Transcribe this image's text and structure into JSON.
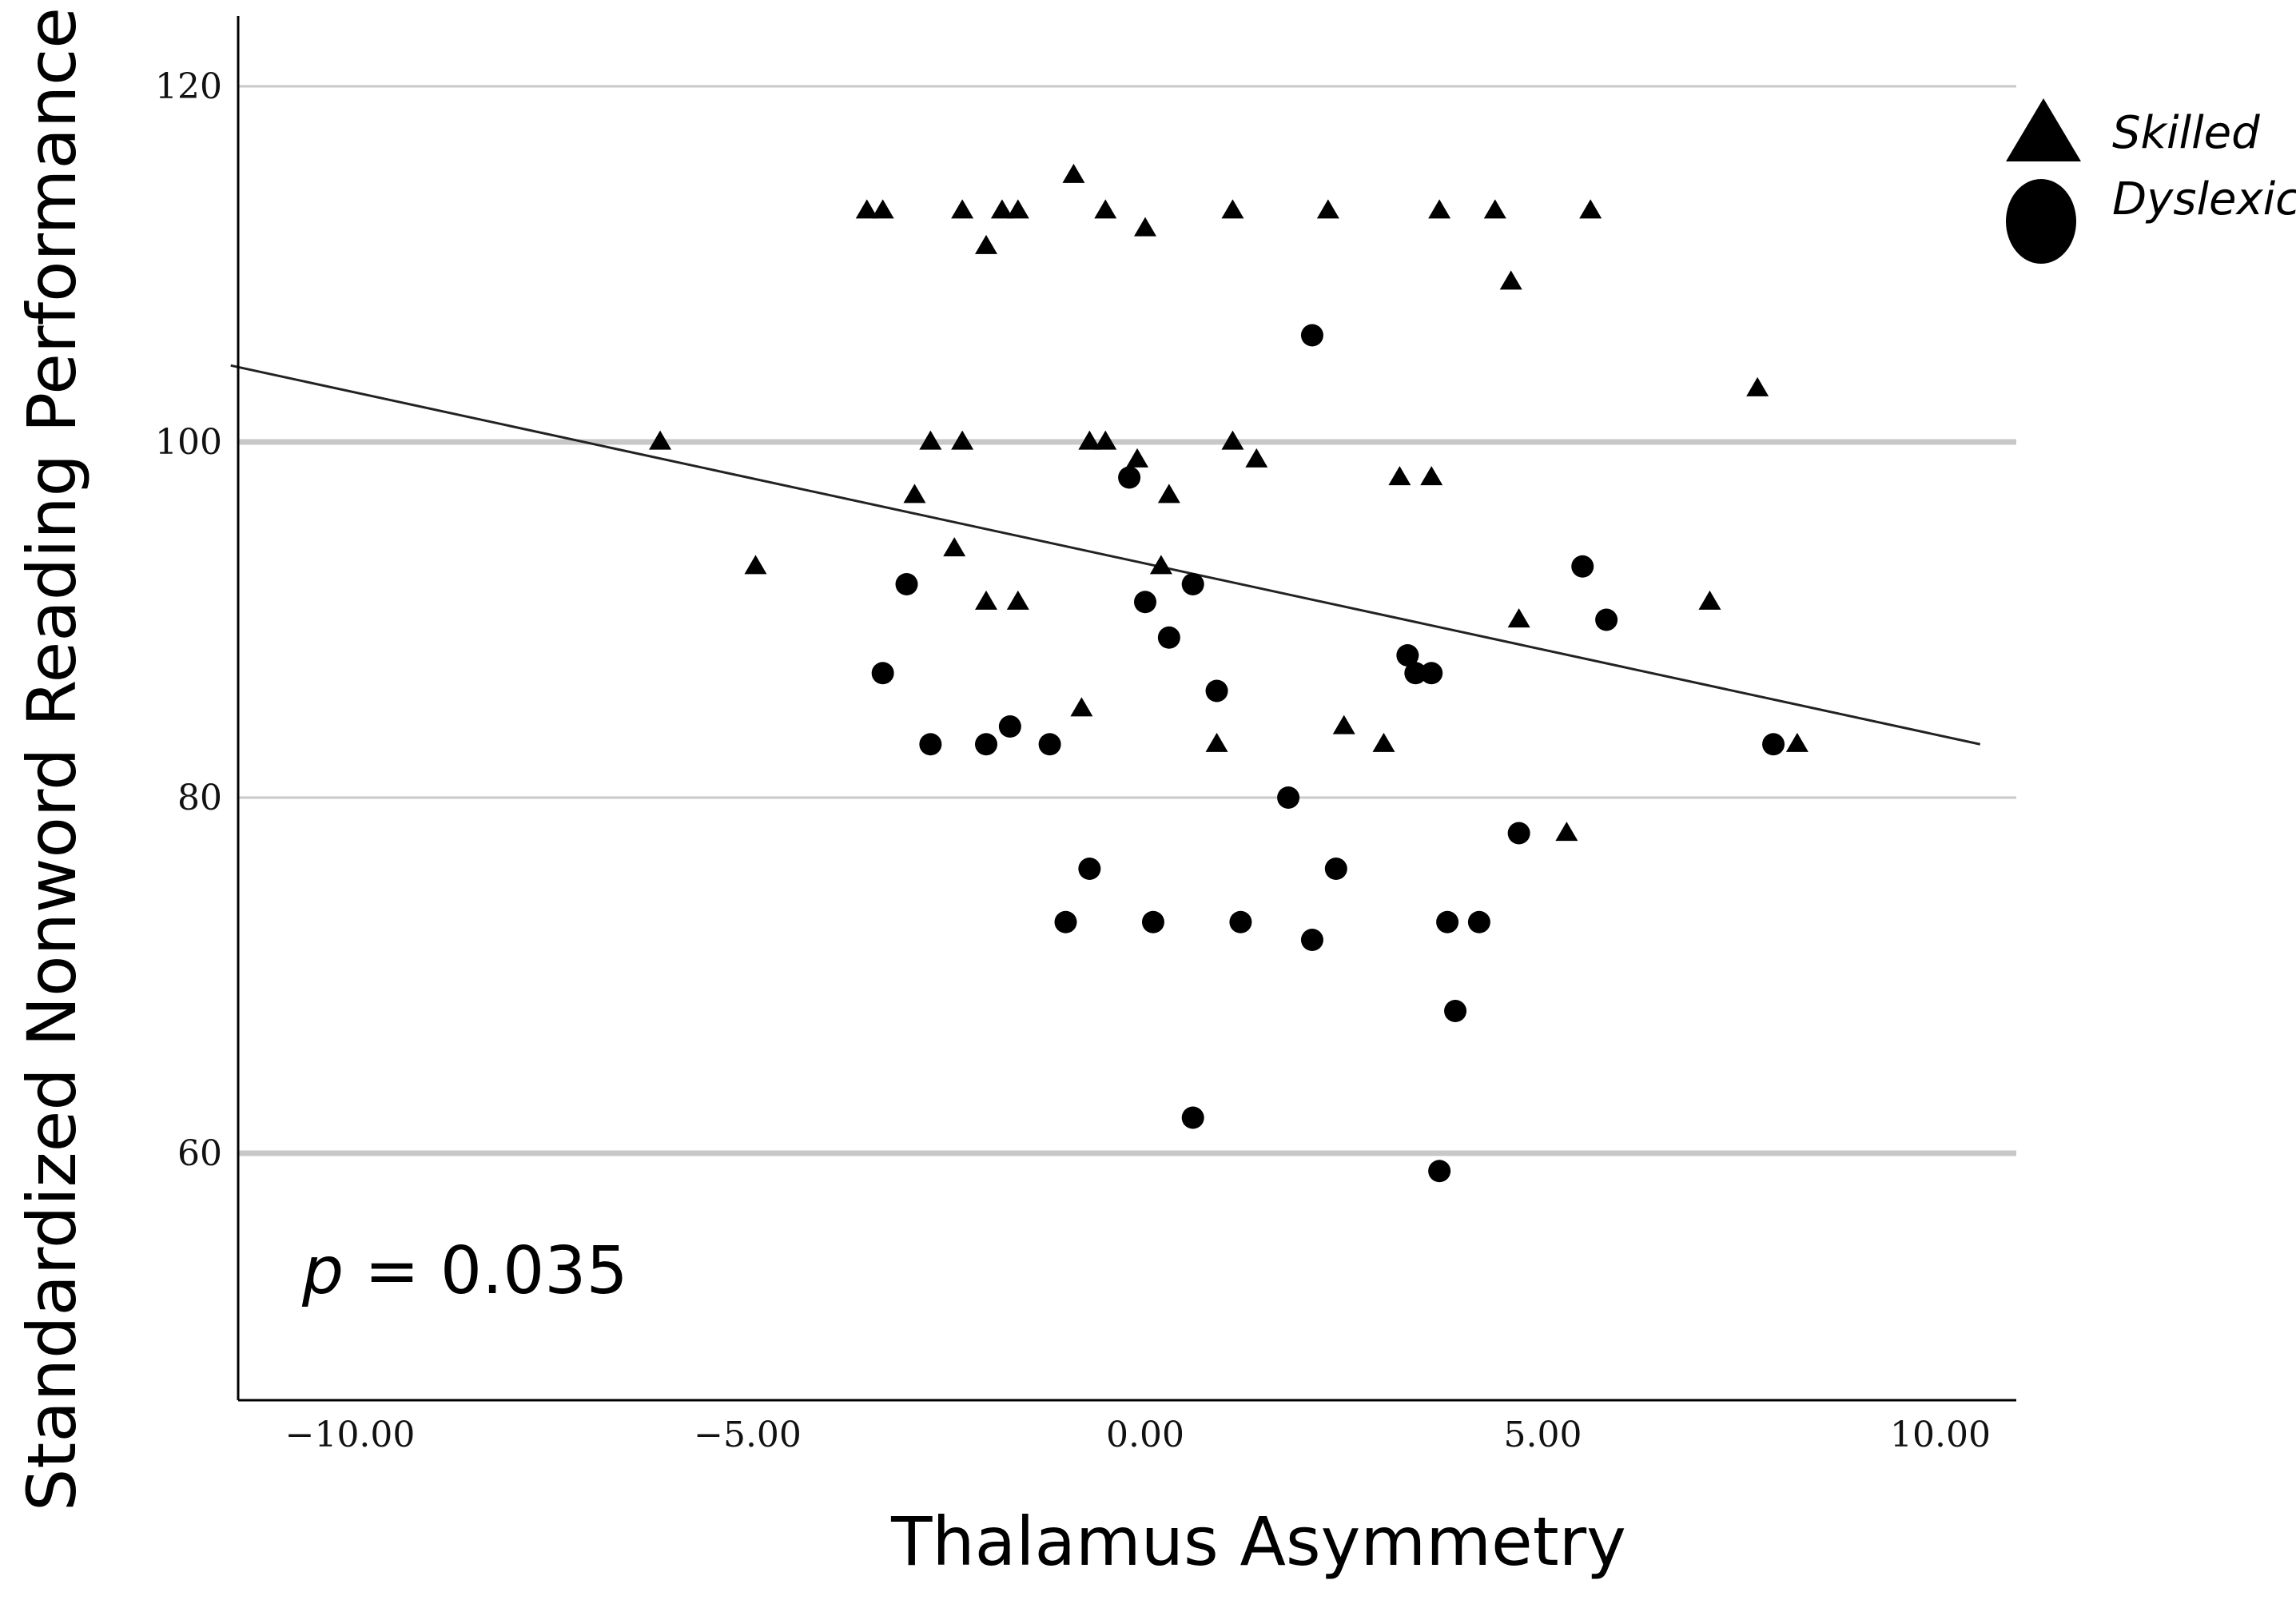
{
  "chart_data": {
    "type": "scatter",
    "xlabel": "Thalamus Asymmetry",
    "ylabel": "Standardized Nonword Reading Performance",
    "xlim": [
      -11.5,
      10.5
    ],
    "ylim": [
      46,
      124
    ],
    "x_ticks": [
      -10,
      -5,
      0,
      5,
      10
    ],
    "x_tick_labels": [
      "−10.00",
      "−5.00",
      "0.00",
      "5.00",
      "10.00"
    ],
    "y_ticks": [
      60,
      80,
      100,
      120
    ],
    "y_tick_labels": [
      "60",
      "80",
      "100",
      "120"
    ],
    "grid": "horizontal",
    "legend_position": "top-right",
    "annotation": {
      "p_symbol": "p",
      "p_rest": " = 0.035"
    },
    "fit_line": {
      "x": [
        -11.5,
        10.5
      ],
      "y": [
        104.3,
        83.0
      ]
    },
    "series": [
      {
        "name": "Skilled",
        "marker": "triangle",
        "color": "#000000",
        "points": [
          [
            -3.5,
            113
          ],
          [
            -3.3,
            113
          ],
          [
            -2.3,
            113
          ],
          [
            -1.8,
            113
          ],
          [
            -1.6,
            113
          ],
          [
            -0.9,
            115
          ],
          [
            -0.5,
            113
          ],
          [
            0.0,
            112
          ],
          [
            1.1,
            113
          ],
          [
            2.3,
            113
          ],
          [
            3.7,
            113
          ],
          [
            4.4,
            113
          ],
          [
            5.6,
            113
          ],
          [
            -2.0,
            111
          ],
          [
            4.6,
            109
          ],
          [
            7.7,
            103
          ],
          [
            -6.1,
            100
          ],
          [
            -2.7,
            100
          ],
          [
            -2.3,
            100
          ],
          [
            -0.7,
            100
          ],
          [
            -0.5,
            100
          ],
          [
            1.1,
            100
          ],
          [
            -0.1,
            99
          ],
          [
            1.4,
            99
          ],
          [
            3.2,
            98
          ],
          [
            3.6,
            98
          ],
          [
            -2.9,
            97
          ],
          [
            0.3,
            97
          ],
          [
            -2.4,
            94
          ],
          [
            -4.9,
            93
          ],
          [
            0.2,
            93
          ],
          [
            -2.0,
            91
          ],
          [
            -1.6,
            91
          ],
          [
            7.1,
            91
          ],
          [
            4.7,
            90
          ],
          [
            -0.8,
            85
          ],
          [
            2.5,
            84
          ],
          [
            0.9,
            83
          ],
          [
            3.0,
            83
          ],
          [
            8.2,
            83
          ],
          [
            5.3,
            78
          ]
        ]
      },
      {
        "name": "Dyslexic",
        "marker": "circle",
        "color": "#000000",
        "points": [
          [
            2.1,
            106
          ],
          [
            -0.2,
            98
          ],
          [
            -3.0,
            92
          ],
          [
            0.6,
            92
          ],
          [
            5.5,
            93
          ],
          [
            0.0,
            91
          ],
          [
            5.8,
            90
          ],
          [
            0.3,
            89
          ],
          [
            3.3,
            88
          ],
          [
            -3.3,
            87
          ],
          [
            3.4,
            87
          ],
          [
            3.6,
            87
          ],
          [
            0.9,
            86
          ],
          [
            -1.7,
            84
          ],
          [
            -2.7,
            83
          ],
          [
            -2.0,
            83
          ],
          [
            -1.2,
            83
          ],
          [
            7.9,
            83
          ],
          [
            1.8,
            80
          ],
          [
            -0.7,
            76
          ],
          [
            2.4,
            76
          ],
          [
            4.7,
            78
          ],
          [
            -1.0,
            73
          ],
          [
            0.1,
            73
          ],
          [
            1.2,
            73
          ],
          [
            3.8,
            73
          ],
          [
            4.2,
            73
          ],
          [
            2.1,
            72
          ],
          [
            3.9,
            68
          ],
          [
            0.6,
            62
          ],
          [
            3.7,
            59
          ]
        ]
      }
    ]
  }
}
